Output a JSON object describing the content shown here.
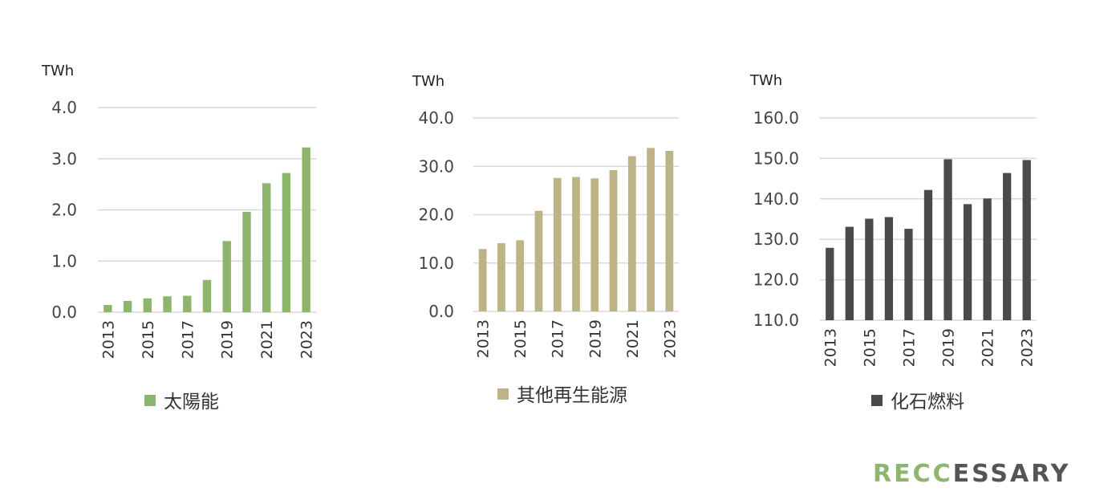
{
  "chart_data": [
    {
      "type": "bar",
      "unit": "TWh",
      "legend": "太陽能",
      "color": "#8db56b",
      "categories": [
        "2013",
        "2014",
        "2015",
        "2016",
        "2017",
        "2018",
        "2019",
        "2020",
        "2021",
        "2022",
        "2023"
      ],
      "x_tick_labels": [
        "2013",
        "2015",
        "2017",
        "2019",
        "2021",
        "2023"
      ],
      "values": [
        0.14,
        0.22,
        0.27,
        0.31,
        0.32,
        0.63,
        1.39,
        1.96,
        2.52,
        2.72,
        3.22
      ],
      "ylim": [
        0,
        4
      ],
      "y_ticks": [
        "0.0",
        "1.0",
        "2.0",
        "3.0",
        "4.0"
      ],
      "grid": true,
      "legend_position": "bottom"
    },
    {
      "type": "bar",
      "unit": "TWh",
      "legend": "其他再生能源",
      "color": "#bdb386",
      "categories": [
        "2013",
        "2014",
        "2015",
        "2016",
        "2017",
        "2018",
        "2019",
        "2020",
        "2021",
        "2022",
        "2023"
      ],
      "x_tick_labels": [
        "2013",
        "2015",
        "2017",
        "2019",
        "2021",
        "2023"
      ],
      "values": [
        12.9,
        14.1,
        14.7,
        20.8,
        27.6,
        27.8,
        27.5,
        29.2,
        32.1,
        33.8,
        33.2
      ],
      "ylim": [
        0,
        40
      ],
      "y_ticks": [
        "0.0",
        "10.0",
        "20.0",
        "30.0",
        "40.0"
      ],
      "grid": true,
      "legend_position": "bottom"
    },
    {
      "type": "bar",
      "unit": "TWh",
      "legend": "化石燃料",
      "color": "#4a4a4a",
      "categories": [
        "2013",
        "2014",
        "2015",
        "2016",
        "2017",
        "2018",
        "2019",
        "2020",
        "2021",
        "2022",
        "2023"
      ],
      "x_tick_labels": [
        "2013",
        "2015",
        "2017",
        "2019",
        "2021",
        "2023"
      ],
      "values": [
        127.9,
        133.1,
        135.1,
        135.5,
        132.6,
        142.2,
        149.8,
        138.7,
        140.1,
        146.4,
        149.6
      ],
      "ylim": [
        110,
        160
      ],
      "y_ticks": [
        "110.0",
        "120.0",
        "130.0",
        "140.0",
        "150.0",
        "160.0"
      ],
      "grid": true,
      "legend_position": "bottom"
    }
  ],
  "logo": {
    "part1": "RECC",
    "part2": "ESSARY",
    "color1": "#8db56b",
    "color2": "#555555"
  }
}
